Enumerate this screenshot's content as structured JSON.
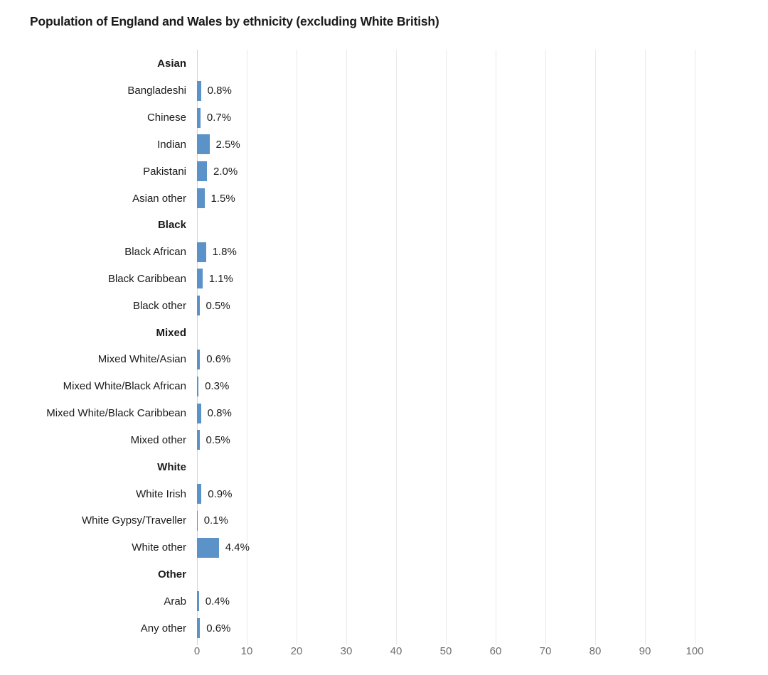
{
  "chart_data": {
    "type": "bar",
    "orientation": "horizontal",
    "title": "Population of England and Wales by ethnicity (excluding White British)",
    "xlabel": "",
    "ylabel": "",
    "unit": "%",
    "xlim": [
      0,
      100
    ],
    "xticks": [
      0,
      10,
      20,
      30,
      40,
      50,
      60,
      70,
      80,
      90,
      100
    ],
    "grid": "vertical",
    "legend": "none",
    "colors": {
      "bar": "#5B92C8",
      "gridline": "#e9e9e9",
      "zero_line": "#d4d4d4",
      "text": "#1a1a1a",
      "tick_text": "#6f6f6f"
    },
    "groups": [
      {
        "name": "Asian",
        "items": [
          {
            "label": "Bangladeshi",
            "value": 0.8,
            "display": "0.8%"
          },
          {
            "label": "Chinese",
            "value": 0.7,
            "display": "0.7%"
          },
          {
            "label": "Indian",
            "value": 2.5,
            "display": "2.5%"
          },
          {
            "label": "Pakistani",
            "value": 2.0,
            "display": "2.0%"
          },
          {
            "label": "Asian other",
            "value": 1.5,
            "display": "1.5%"
          }
        ]
      },
      {
        "name": "Black",
        "items": [
          {
            "label": "Black African",
            "value": 1.8,
            "display": "1.8%"
          },
          {
            "label": "Black Caribbean",
            "value": 1.1,
            "display": "1.1%"
          },
          {
            "label": "Black other",
            "value": 0.5,
            "display": "0.5%"
          }
        ]
      },
      {
        "name": "Mixed",
        "items": [
          {
            "label": "Mixed White/Asian",
            "value": 0.6,
            "display": "0.6%"
          },
          {
            "label": "Mixed White/Black African",
            "value": 0.3,
            "display": "0.3%"
          },
          {
            "label": "Mixed White/Black Caribbean",
            "value": 0.8,
            "display": "0.8%"
          },
          {
            "label": "Mixed other",
            "value": 0.5,
            "display": "0.5%"
          }
        ]
      },
      {
        "name": "White",
        "items": [
          {
            "label": "White Irish",
            "value": 0.9,
            "display": "0.9%"
          },
          {
            "label": "White Gypsy/Traveller",
            "value": 0.1,
            "display": "0.1%"
          },
          {
            "label": "White other",
            "value": 4.4,
            "display": "4.4%"
          }
        ]
      },
      {
        "name": "Other",
        "items": [
          {
            "label": "Arab",
            "value": 0.4,
            "display": "0.4%"
          },
          {
            "label": "Any other",
            "value": 0.6,
            "display": "0.6%"
          }
        ]
      }
    ]
  }
}
